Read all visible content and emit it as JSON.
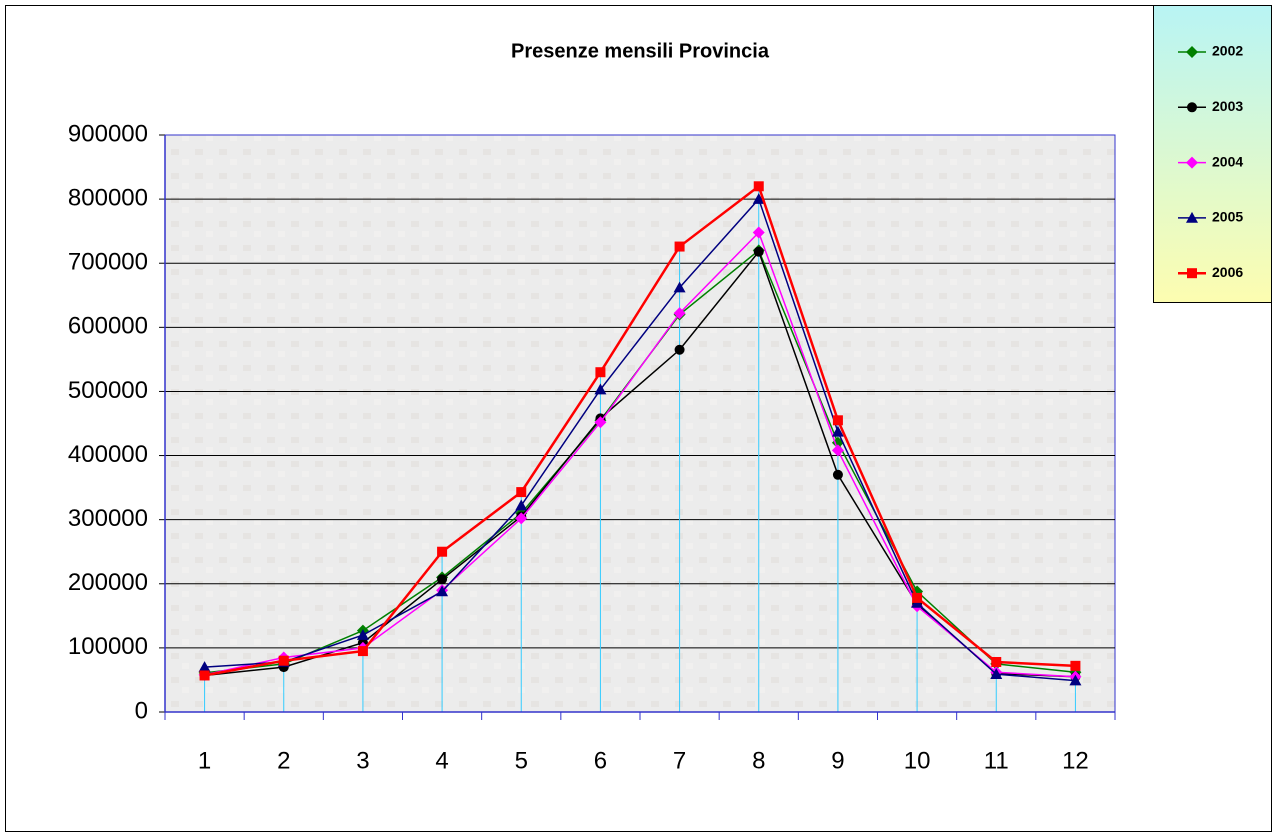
{
  "chart_data": {
    "type": "line",
    "title": "Presenze mensili Provincia",
    "categories": [
      "1",
      "2",
      "3",
      "4",
      "5",
      "6",
      "7",
      "8",
      "9",
      "10",
      "11",
      "12"
    ],
    "series": [
      {
        "name": "2002",
        "color": "#008000",
        "marker": "diamond",
        "values": [
          61000,
          75000,
          127000,
          210000,
          310000,
          455000,
          620000,
          720000,
          420000,
          188000,
          75000,
          62000
        ]
      },
      {
        "name": "2003",
        "color": "#000000",
        "marker": "circle",
        "values": [
          57000,
          70000,
          108000,
          207000,
          305000,
          458000,
          565000,
          718000,
          370000,
          168000,
          60000,
          55000
        ]
      },
      {
        "name": "2004",
        "color": "#ff00ff",
        "marker": "diamond",
        "values": [
          58000,
          85000,
          100000,
          190000,
          302000,
          452000,
          622000,
          748000,
          408000,
          165000,
          62000,
          55000
        ]
      },
      {
        "name": "2005",
        "color": "#000080",
        "marker": "triangle",
        "values": [
          70000,
          78000,
          120000,
          188000,
          322000,
          503000,
          662000,
          800000,
          437000,
          170000,
          59000,
          49000
        ]
      },
      {
        "name": "2006",
        "color": "#ff0000",
        "marker": "square",
        "values": [
          57000,
          80000,
          95000,
          250000,
          343000,
          530000,
          726000,
          820000,
          455000,
          178000,
          78000,
          72000
        ]
      }
    ],
    "ylim": [
      0,
      900000
    ],
    "yticks": [
      0,
      100000,
      200000,
      300000,
      400000,
      500000,
      600000,
      700000,
      800000,
      900000
    ],
    "grid": true,
    "drop_lines": true,
    "legend": "top-right"
  }
}
